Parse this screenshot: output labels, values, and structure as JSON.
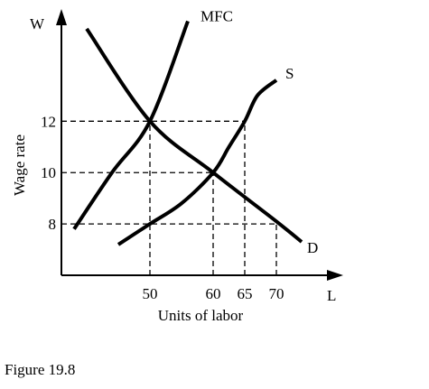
{
  "chart_data": {
    "type": "line",
    "xlabel": "Units of labor",
    "ylabel": "Wage rate",
    "x_axis_symbol": "L",
    "y_axis_symbol": "W",
    "xticks": [
      50,
      60,
      65,
      70
    ],
    "yticks": [
      8,
      10,
      12
    ],
    "xlim": [
      36,
      80
    ],
    "ylim": [
      6,
      16.3
    ],
    "series": [
      {
        "name": "MFC",
        "points": [
          [
            38,
            7.8
          ],
          [
            44,
            10
          ],
          [
            50,
            12
          ],
          [
            56,
            15.9
          ]
        ]
      },
      {
        "name": "S",
        "points": [
          [
            45,
            7.2
          ],
          [
            50,
            8
          ],
          [
            55,
            8.8
          ],
          [
            60,
            10
          ],
          [
            62.5,
            11
          ],
          [
            65,
            12
          ],
          [
            67,
            13
          ],
          [
            70,
            13.6
          ]
        ]
      },
      {
        "name": "D",
        "points": [
          [
            40,
            15.6
          ],
          [
            50,
            12
          ],
          [
            60,
            10
          ],
          [
            70,
            8.1
          ],
          [
            74,
            7.3
          ]
        ]
      }
    ],
    "guides": [
      {
        "type": "h",
        "y": 12,
        "x_end": 65
      },
      {
        "type": "h",
        "y": 10,
        "x_end": 60
      },
      {
        "type": "h",
        "y": 8,
        "x_end": 70
      },
      {
        "type": "v",
        "x": 50,
        "y_end": 12
      },
      {
        "type": "v",
        "x": 60,
        "y_end": 10
      },
      {
        "type": "v",
        "x": 65,
        "y_end": 12
      },
      {
        "type": "v",
        "x": 70,
        "y_end": 8
      }
    ]
  },
  "caption": "Figure 19.8"
}
